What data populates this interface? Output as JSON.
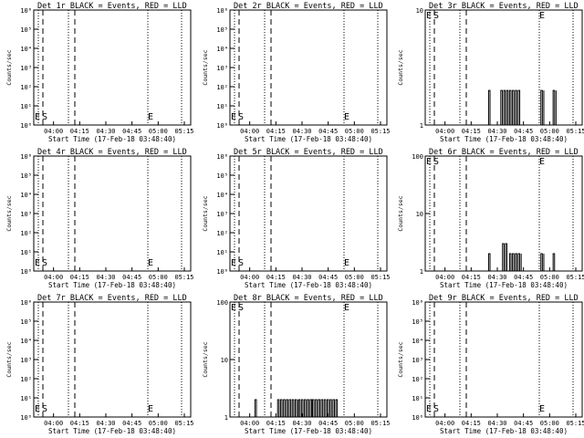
{
  "common": {
    "xlabel": "Start Time (17-Feb-18 03:48:40)",
    "ylabel": "Counts/sec",
    "x_ticks": [
      "04:00",
      "04:15",
      "04:30",
      "04:45",
      "05:00",
      "05:15"
    ],
    "marker_E": "E",
    "marker_S": "S"
  },
  "chart_data": [
    {
      "type": "line",
      "title": "Det 1r BLACK = Events, RED = LLD",
      "yscale": "log",
      "ylim": [
        1,
        1000000
      ],
      "y_ticks": [
        "10⁶",
        "10⁵",
        "10⁴",
        "10³",
        "10²",
        "10¹",
        "10⁰"
      ],
      "series": [
        {
          "x": [],
          "values": []
        }
      ]
    },
    {
      "type": "line",
      "title": "Det 2r BLACK = Events, RED = LLD",
      "yscale": "log",
      "ylim": [
        1,
        1000000
      ],
      "y_ticks": [
        "10⁶",
        "10⁵",
        "10⁴",
        "10³",
        "10²",
        "10¹",
        "10⁰"
      ],
      "series": [
        {
          "x": [],
          "values": []
        }
      ]
    },
    {
      "type": "line",
      "title": "Det 3r BLACK = Events, RED = LLD",
      "yscale": "log",
      "ylim": [
        1,
        10
      ],
      "y_ticks": [
        "10",
        "1"
      ],
      "series": [
        {
          "segments": [
            [
              "04:32",
              "04:37",
              1,
              2
            ],
            [
              "04:37",
              "04:43",
              1,
              2
            ],
            [
              "04:55",
              "04:57",
              1,
              2
            ],
            [
              "05:02",
              "05:04",
              1,
              2
            ],
            [
              "04:25",
              "04:26",
              1,
              2
            ]
          ]
        }
      ]
    },
    {
      "type": "line",
      "title": "Det 4r BLACK = Events, RED = LLD",
      "yscale": "log",
      "ylim": [
        1,
        1000000
      ],
      "y_ticks": [
        "10⁶",
        "10⁵",
        "10⁴",
        "10³",
        "10²",
        "10¹",
        "10⁰"
      ],
      "series": [
        {
          "x": [],
          "values": []
        }
      ]
    },
    {
      "type": "line",
      "title": "Det 5r BLACK = Events, RED = LLD",
      "yscale": "log",
      "ylim": [
        1,
        1000000
      ],
      "y_ticks": [
        "10⁶",
        "10⁵",
        "10⁴",
        "10³",
        "10²",
        "10¹",
        "10⁰"
      ],
      "series": [
        {
          "x": [],
          "values": []
        }
      ]
    },
    {
      "type": "line",
      "title": "Det 6r BLACK = Events, RED = LLD",
      "yscale": "log",
      "ylim": [
        1,
        100
      ],
      "y_ticks": [
        "100",
        "10",
        "1"
      ],
      "series": [
        {
          "segments": [
            [
              "04:25",
              "04:26",
              1,
              2
            ],
            [
              "04:33",
              "04:36",
              1,
              3
            ],
            [
              "04:37",
              "04:44",
              1,
              2
            ],
            [
              "04:55",
              "04:57",
              1,
              2
            ],
            [
              "05:02",
              "05:03",
              1,
              2
            ]
          ]
        }
      ]
    },
    {
      "type": "line",
      "title": "Det 7r BLACK = Events, RED = LLD",
      "yscale": "log",
      "ylim": [
        1,
        1000000
      ],
      "y_ticks": [
        "10⁶",
        "10⁵",
        "10⁴",
        "10³",
        "10²",
        "10¹",
        "10⁰"
      ],
      "series": [
        {
          "x": [],
          "values": []
        }
      ]
    },
    {
      "type": "line",
      "title": "Det 8r BLACK = Events, RED = LLD",
      "yscale": "log",
      "ylim": [
        1,
        100
      ],
      "y_ticks": [
        "100",
        "10",
        "1"
      ],
      "series": [
        {
          "segments": [
            [
              "04:03",
              "04:04",
              1,
              2
            ],
            [
              "04:16",
              "04:28",
              1,
              2
            ],
            [
              "04:28",
              "04:36",
              1,
              2
            ],
            [
              "04:36",
              "04:51",
              1,
              2
            ]
          ]
        }
      ]
    },
    {
      "type": "line",
      "title": "Det 9r BLACK = Events, RED = LLD",
      "yscale": "log",
      "ylim": [
        1,
        1000000
      ],
      "y_ticks": [
        "10⁶",
        "10⁵",
        "10⁴",
        "10³",
        "10²",
        "10¹",
        "10⁰"
      ],
      "series": [
        {
          "x": [],
          "values": []
        }
      ]
    }
  ]
}
